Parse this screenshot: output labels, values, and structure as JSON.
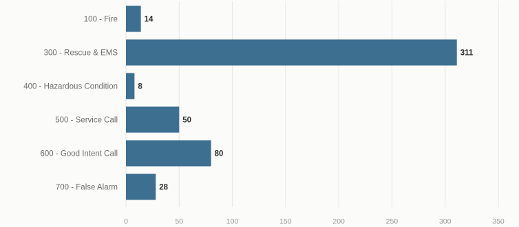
{
  "chart_data": {
    "type": "bar",
    "orientation": "horizontal",
    "categories": [
      "100 - Fire",
      "300 - Rescue & EMS",
      "400 - Hazardous Condition",
      "500 - Service Call",
      "600 - Good Intent Call",
      "700 - False Alarm"
    ],
    "values": [
      14,
      311,
      8,
      50,
      80,
      28
    ],
    "value_labels": [
      "14",
      "311",
      "8",
      "50",
      "80",
      "28"
    ],
    "xlim": [
      0,
      350
    ],
    "xticks": [
      0,
      50,
      100,
      150,
      200,
      250,
      300,
      350
    ],
    "xtick_labels": [
      "0",
      "50",
      "100",
      "150",
      "200",
      "250",
      "300",
      "350"
    ],
    "grid": true,
    "legend": "none",
    "bar_color": "#3d6f91",
    "title": "",
    "xlabel": "",
    "ylabel": ""
  }
}
